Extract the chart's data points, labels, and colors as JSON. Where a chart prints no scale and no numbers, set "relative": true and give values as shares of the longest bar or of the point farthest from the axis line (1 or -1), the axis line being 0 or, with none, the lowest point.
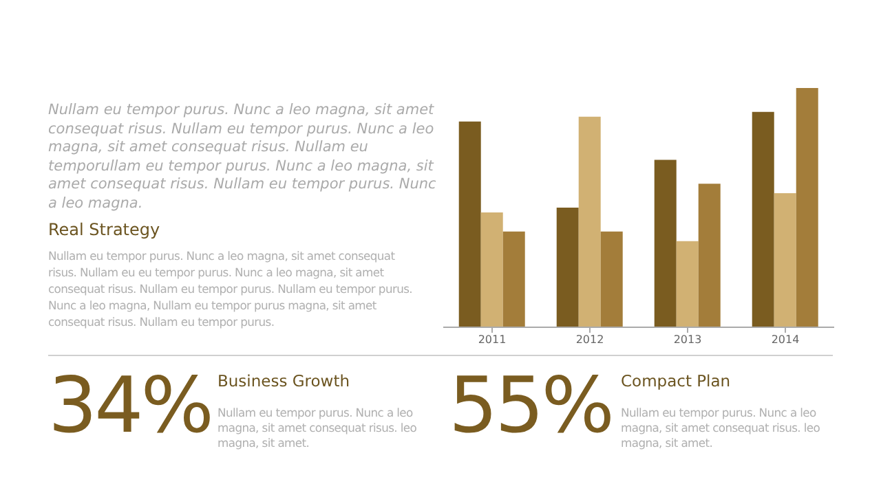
{
  "chart_data": {
    "type": "bar",
    "relative": true,
    "categories": [
      "2011",
      "2012",
      "2013",
      "2014"
    ],
    "series": [
      {
        "color": "#7a5c20",
        "values": [
          0.86,
          0.5,
          0.7,
          0.9
        ]
      },
      {
        "color": "#d1b173",
        "values": [
          0.48,
          0.88,
          0.36,
          0.56
        ]
      },
      {
        "color": "#a37d3a",
        "values": [
          0.4,
          0.4,
          0.6,
          1
        ]
      }
    ],
    "grid": false,
    "legend": false,
    "annotations": [
      "Nullam eu tempor purus. Nunc a leo magna, sit amet consequat risus. Nullam eu tempor purus. Nunc a leo magna, sit amet consequat risus. Nullam eu temporullam eu tempor purus. Nunc a leo magna, sit amet consequat risus. Nullam eu tempor purus. Nunc a leo magna.",
      "Real Strategy",
      "Nullam eu tempor purus. Nunc a leo magna, sit amet consequat risus. Nullam eu eu tempor purus. Nunc a leo magna, sit amet consequat risus. Nullam eu tempor purus. Nullam eu tempor purus. Nunc a leo magna, Nullam eu tempor purus magna, sit amet consequat risus. Nullam eu tempor purus.",
      "34%",
      "Business Growth",
      "Nullam eu tempor purus. Nunc a leo magna, sit amet consequat risus. leo magna, sit amet.",
      "55%",
      "Compact Plan",
      "Nullam eu tempor purus. Nunc a leo magna, sit amet consequat risus. leo magna, sit amet."
    ]
  }
}
